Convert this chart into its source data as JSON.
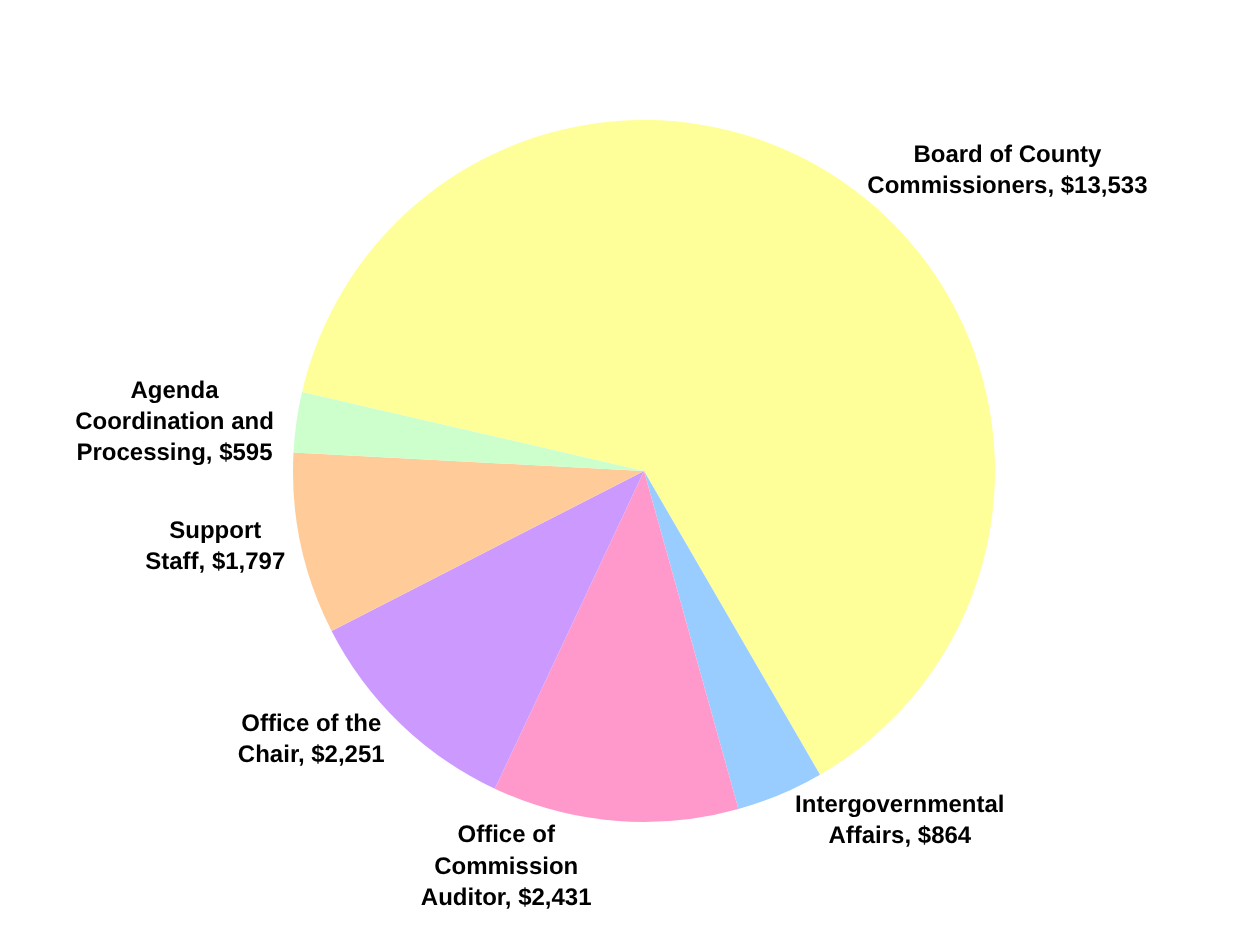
{
  "chart_data": {
    "type": "pie",
    "categories": [
      "Board of County Commissioners",
      "Intergovernmental Affairs",
      "Office of Commission Auditor",
      "Office of the Chair",
      "Support Staff",
      "Agenda Coordination and Processing"
    ],
    "values": [
      13533,
      864,
      2431,
      2251,
      1797,
      595
    ],
    "value_labels": [
      "$13,533",
      "$864",
      "$2,431",
      "$2,251",
      "$1,797",
      "$595"
    ],
    "colors": [
      "#ffff99",
      "#99ccff",
      "#ff99cc",
      "#cc99ff",
      "#ffcc99",
      "#ccffcc"
    ],
    "legend": false
  }
}
